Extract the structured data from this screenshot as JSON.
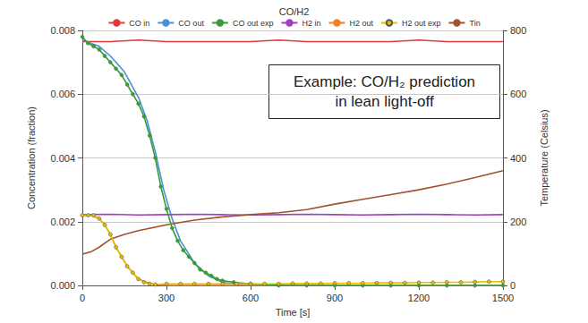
{
  "chart_data": {
    "type": "line",
    "title": "CO/H2",
    "x_label": "Time [s]",
    "y_label": "Concentration (fraction)",
    "y2_label": "Temperature (Celsius)",
    "annotations": [
      {
        "text": "Example: CO/H₂ prediction\nin lean light-off"
      }
    ],
    "xlim": [
      0,
      1500
    ],
    "xticks": [
      0,
      300,
      600,
      900,
      1200,
      1500
    ],
    "ylim": [
      0,
      0.008
    ],
    "yticks": [
      {
        "value": 0,
        "label": "0.000"
      },
      {
        "value": 0.002,
        "label": "0.002"
      },
      {
        "value": 0.004,
        "label": "0.004"
      },
      {
        "value": 0.006,
        "label": "0.006"
      },
      {
        "value": 0.008,
        "label": "0.008"
      }
    ],
    "y2lim": [
      0,
      800
    ],
    "y2ticks": [
      0,
      200,
      400,
      600,
      800
    ],
    "grid": true,
    "legend": "top",
    "series": [
      {
        "name": "CO in",
        "color": "#e03a3a",
        "marker": "none",
        "line_style": "solid",
        "x": [
          0,
          100,
          200,
          300,
          400,
          500,
          600,
          700,
          800,
          900,
          1000,
          1100,
          1200,
          1300,
          1400,
          1500
        ],
        "values": [
          0.00765,
          0.00765,
          0.0077,
          0.00765,
          0.00765,
          0.00765,
          0.00765,
          0.0077,
          0.00765,
          0.00765,
          0.00765,
          0.00765,
          0.0077,
          0.00765,
          0.00765,
          0.00765
        ]
      },
      {
        "name": "CO out",
        "color": "#4a90d9",
        "marker": "none",
        "line_style": "solid",
        "x": [
          0,
          30,
          60,
          100,
          150,
          200,
          230,
          260,
          290,
          320,
          350,
          400,
          450,
          500,
          550,
          600,
          800,
          1000,
          1200,
          1500
        ],
        "values": [
          0.0077,
          0.0076,
          0.0075,
          0.0072,
          0.0067,
          0.0059,
          0.0052,
          0.0042,
          0.003,
          0.0021,
          0.0014,
          0.0007,
          0.0003,
          0.0001,
          3e-05,
          0,
          0,
          0,
          0,
          0
        ]
      },
      {
        "name": "CO out exp",
        "color": "#3a9a3a",
        "marker": "circle",
        "line_style": "solid",
        "x": [
          0,
          20,
          40,
          60,
          80,
          100,
          120,
          140,
          160,
          180,
          200,
          220,
          240,
          260,
          280,
          300,
          320,
          340,
          360,
          380,
          400,
          420,
          440,
          460,
          480,
          500,
          540,
          600,
          700,
          800,
          900,
          1000,
          1100,
          1200,
          1300,
          1400,
          1500
        ],
        "values": [
          0.0078,
          0.0076,
          0.0075,
          0.0074,
          0.0072,
          0.007,
          0.0068,
          0.0066,
          0.0063,
          0.006,
          0.0057,
          0.0053,
          0.0047,
          0.004,
          0.0031,
          0.0024,
          0.0018,
          0.0014,
          0.0011,
          0.0009,
          0.0007,
          0.0005,
          0.0004,
          0.0003,
          0.0002,
          0.00015,
          0.0001,
          5e-05,
          0,
          0,
          0,
          0,
          0,
          0,
          0,
          0,
          0
        ]
      },
      {
        "name": "H2 in",
        "color": "#a040c0",
        "marker": "none",
        "line_style": "solid",
        "x": [
          0,
          100,
          200,
          300,
          400,
          500,
          600,
          700,
          800,
          900,
          1000,
          1100,
          1200,
          1300,
          1400,
          1500
        ],
        "values": [
          0.00222,
          0.00223,
          0.00221,
          0.00222,
          0.00223,
          0.00222,
          0.00221,
          0.00222,
          0.00223,
          0.00222,
          0.00221,
          0.00222,
          0.00223,
          0.00222,
          0.00221,
          0.00222
        ]
      },
      {
        "name": "H2 out",
        "color": "#f08020",
        "marker": "none",
        "line_style": "solid",
        "x": [
          0,
          30,
          60,
          80,
          100,
          120,
          140,
          160,
          180,
          200,
          230,
          260,
          300,
          400,
          600,
          800,
          1000,
          1200,
          1500
        ],
        "values": [
          0.0022,
          0.0022,
          0.0021,
          0.0019,
          0.0016,
          0.0012,
          0.0009,
          0.0006,
          0.0004,
          0.0002,
          0.0001,
          3e-05,
          0,
          0,
          0,
          0,
          0,
          0,
          0
        ]
      },
      {
        "name": "H2 out exp",
        "color": "#e6c000",
        "marker": "circle",
        "line_style": "solid",
        "x": [
          0,
          20,
          40,
          60,
          80,
          100,
          120,
          140,
          160,
          180,
          200,
          220,
          240,
          260,
          300,
          350,
          400,
          450,
          500,
          550,
          600,
          650,
          700,
          750,
          800,
          850,
          900,
          950,
          1000,
          1050,
          1100,
          1150,
          1200,
          1250,
          1300,
          1350,
          1400,
          1450,
          1500
        ],
        "values": [
          0.0022,
          0.0022,
          0.0022,
          0.0021,
          0.0019,
          0.0016,
          0.0012,
          0.0009,
          0.0006,
          0.0004,
          0.0002,
          0.0001,
          5e-05,
          3e-05,
          5e-05,
          5e-05,
          5e-05,
          5e-05,
          5e-05,
          5e-05,
          5e-05,
          5e-05,
          5e-05,
          6e-05,
          6e-05,
          6e-05,
          7e-05,
          7e-05,
          7e-05,
          8e-05,
          8e-05,
          8e-05,
          9e-05,
          9e-05,
          0.0001,
          0.0001,
          0.00011,
          0.00012,
          0.00012
        ]
      },
      {
        "name": "Tin",
        "color": "#a0522d",
        "marker": "none",
        "line_style": "solid",
        "axis": "y2",
        "x": [
          0,
          30,
          60,
          100,
          150,
          200,
          300,
          400,
          500,
          600,
          700,
          800,
          900,
          1000,
          1100,
          1200,
          1300,
          1400,
          1500
        ],
        "values": [
          98,
          105,
          120,
          145,
          160,
          172,
          190,
          205,
          215,
          222,
          228,
          238,
          255,
          270,
          285,
          300,
          318,
          338,
          360
        ]
      }
    ]
  }
}
